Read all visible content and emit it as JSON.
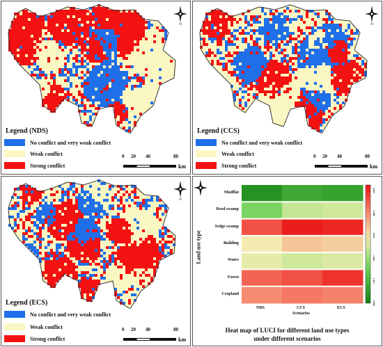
{
  "colors": {
    "no_conflict": "#1f6fe8",
    "weak": "#fbf7c2",
    "strong": "#f41111"
  },
  "legend_items": [
    "No conflict and very weak conflict",
    "Weak conflict",
    "Strong conflict"
  ],
  "scale": {
    "ticks": [
      "0",
      "20",
      "40",
      "80"
    ],
    "unit": "km"
  },
  "maps": [
    {
      "title": "Legend (NDS)",
      "seed": 11
    },
    {
      "title": "Legend (CCS)",
      "seed": 37
    },
    {
      "title": "Legend (ECS)",
      "seed": 83
    }
  ],
  "chart_data": {
    "type": "heatmap",
    "title": "Heat map of LUCI for different land use types under different scenarios",
    "title_lines": [
      "Heat map of LUCI for different land use types",
      "under different scenarios"
    ],
    "xlabel": "Scenarios",
    "ylabel": "Land use type",
    "x": [
      "NDS",
      "CCS",
      "ECS"
    ],
    "y": [
      "Mudflat",
      "Reed swamp",
      "Sedge swamp",
      "Building",
      "Water",
      "Forest",
      "Cropland"
    ],
    "values": [
      [
        0.3,
        0.7,
        0.6
      ],
      [
        1.6,
        2.3,
        2.4
      ],
      [
        4.4,
        4.9,
        4.8
      ],
      [
        2.8,
        3.2,
        3.1
      ],
      [
        2.6,
        2.4,
        2.5
      ],
      [
        4.2,
        4.4,
        4.7
      ],
      [
        3.8,
        4.0,
        3.9
      ]
    ],
    "zlim": [
      0,
      5
    ],
    "colorbar_ticks": [
      "0.596",
      "1.413",
      "2.062",
      "2.831",
      "3.599",
      "4.425"
    ]
  }
}
